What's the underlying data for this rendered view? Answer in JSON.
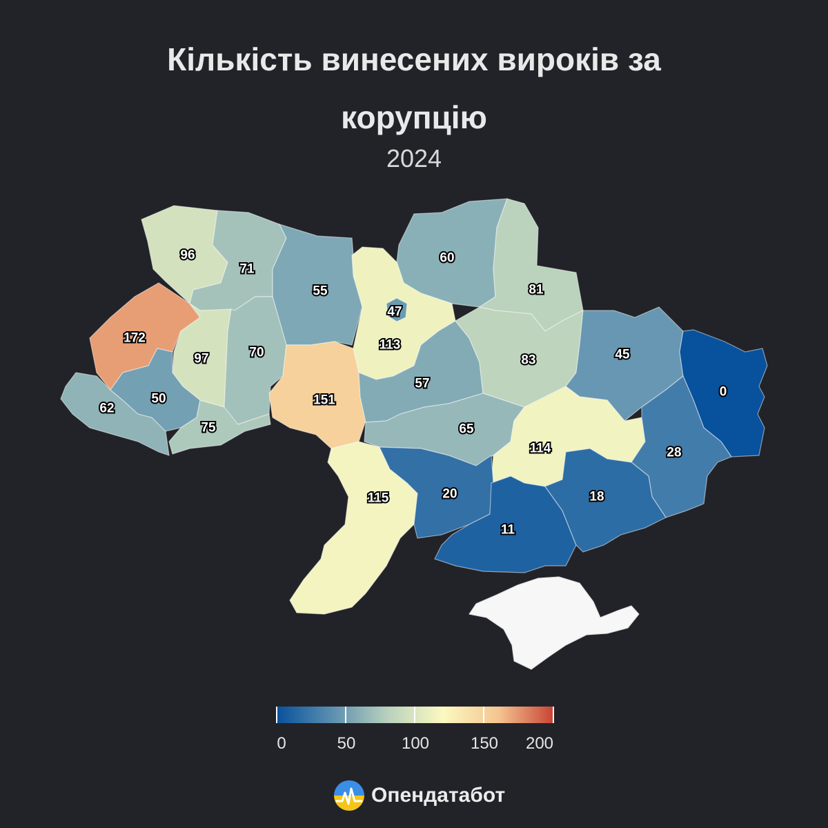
{
  "title_line1": "Кількість винесених вироків за",
  "title_line2": "корупцію",
  "subtitle": "2024",
  "colors": {
    "background": "#222328",
    "scale": [
      "#08519c",
      "#5b8fb0",
      "#b9d1bd",
      "#fbf9c0",
      "#f4c591",
      "#c84234"
    ],
    "no_data": "#f7f7f7"
  },
  "regions": [
    {
      "id": "volyn",
      "value": 96
    },
    {
      "id": "rivne",
      "value": 71
    },
    {
      "id": "zhytomyr",
      "value": 55
    },
    {
      "id": "kyiv-oblast",
      "value": 113
    },
    {
      "id": "kyiv-city",
      "value": 47
    },
    {
      "id": "chernihiv",
      "value": 60
    },
    {
      "id": "sumy",
      "value": 81
    },
    {
      "id": "lviv",
      "value": 172
    },
    {
      "id": "ternopil",
      "value": 97
    },
    {
      "id": "khmelnytskyi",
      "value": 70
    },
    {
      "id": "vinnytsia",
      "value": 151
    },
    {
      "id": "cherkasy",
      "value": 57
    },
    {
      "id": "poltava",
      "value": 83
    },
    {
      "id": "kharkiv",
      "value": 45
    },
    {
      "id": "luhansk",
      "value": 0
    },
    {
      "id": "zakarpattia",
      "value": 62
    },
    {
      "id": "ivano-frankivsk",
      "value": 50
    },
    {
      "id": "chernivtsi",
      "value": 75
    },
    {
      "id": "kirovohrad",
      "value": 65
    },
    {
      "id": "dnipropetrovsk",
      "value": 114
    },
    {
      "id": "donetsk",
      "value": 28
    },
    {
      "id": "odesa",
      "value": 115
    },
    {
      "id": "mykolaiv",
      "value": 20
    },
    {
      "id": "kherson",
      "value": 11
    },
    {
      "id": "zaporizhzhia",
      "value": 18
    }
  ],
  "legend": {
    "min": 0,
    "max": 200,
    "ticks": [
      "0",
      "50",
      "100",
      "150",
      "200"
    ]
  },
  "brand": "Опендатабот"
}
